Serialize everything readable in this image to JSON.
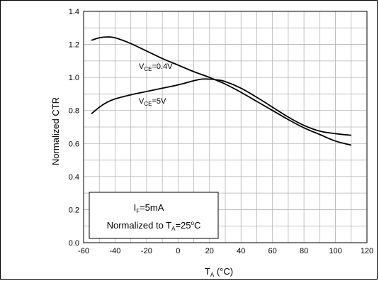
{
  "chart_data": {
    "type": "line",
    "xlabel": {
      "main": "T",
      "sub": "A",
      "tail": " (°C)"
    },
    "ylabel": "Normalized CTR",
    "xlim": [
      -60,
      120
    ],
    "ylim": [
      0.0,
      1.4
    ],
    "x_ticks": [
      "-60",
      "-40",
      "-20",
      "0",
      "20",
      "40",
      "60",
      "80",
      "100",
      "120"
    ],
    "y_ticks": [
      "0.0",
      "0.2",
      "0.4",
      "0.6",
      "0.8",
      "1.0",
      "1.2",
      "1.4"
    ],
    "grid": true,
    "series": [
      {
        "name": "VCE=0.4V",
        "label_parts": {
          "main": "V",
          "sub": "CE",
          "tail": "=0.4V"
        },
        "x": [
          -55,
          -50,
          -45,
          -40,
          -30,
          -20,
          -10,
          0,
          10,
          20,
          25,
          30,
          40,
          50,
          60,
          70,
          80,
          90,
          100,
          110
        ],
        "y": [
          1.225,
          1.24,
          1.245,
          1.24,
          1.205,
          1.16,
          1.115,
          1.075,
          1.035,
          1.0,
          0.98,
          0.96,
          0.91,
          0.855,
          0.8,
          0.745,
          0.695,
          0.655,
          0.615,
          0.59
        ]
      },
      {
        "name": "VCE=5V",
        "label_parts": {
          "main": "V",
          "sub": "CE",
          "tail": "=5V"
        },
        "x": [
          -55,
          -50,
          -45,
          -40,
          -30,
          -20,
          -10,
          0,
          10,
          15,
          20,
          25,
          30,
          40,
          50,
          60,
          70,
          80,
          90,
          100,
          110
        ],
        "y": [
          0.78,
          0.82,
          0.85,
          0.87,
          0.895,
          0.915,
          0.935,
          0.955,
          0.98,
          0.99,
          0.99,
          0.985,
          0.975,
          0.935,
          0.88,
          0.82,
          0.76,
          0.71,
          0.675,
          0.66,
          0.65
        ]
      }
    ],
    "legend_box": {
      "line1": {
        "main": "I",
        "sub": "F",
        "tail": "=5mA"
      },
      "line2": {
        "pre": "Normalized to T",
        "sub": "A",
        "tail": "=25",
        "sup": "o",
        "end": "C"
      }
    }
  }
}
